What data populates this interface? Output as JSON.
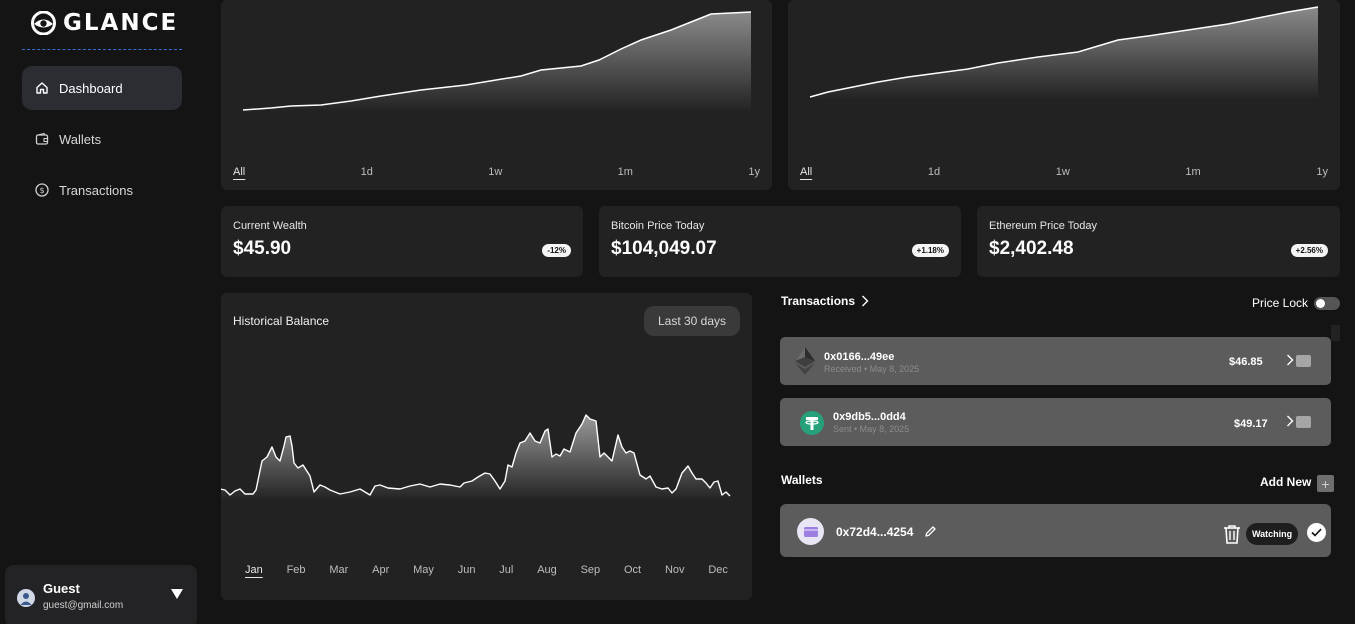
{
  "app": {
    "name": "GLANCE"
  },
  "sidebar": {
    "items": [
      {
        "label": "Dashboard",
        "icon": "home-icon",
        "active": true
      },
      {
        "label": "Wallets",
        "icon": "wallet-icon",
        "active": false
      },
      {
        "label": "Transactions",
        "icon": "dollar-circle-icon",
        "active": false
      }
    ]
  },
  "user": {
    "name": "Guest",
    "email": "guest@gmail.com"
  },
  "price_charts": {
    "range_tabs": [
      "All",
      "1d",
      "1w",
      "1m",
      "1y"
    ],
    "selected_range": "All"
  },
  "stats": [
    {
      "label": "Current Wealth",
      "value": "$45.90",
      "change": "-12%"
    },
    {
      "label": "Bitcoin Price Today",
      "value": "$104,049.07",
      "change": "+1.18%"
    },
    {
      "label": "Ethereum Price Today",
      "value": "$2,402.48",
      "change": "+2.56%"
    }
  ],
  "historical_balance": {
    "title": "Historical Balance",
    "range_button": "Last 30 days",
    "months": [
      "Jan",
      "Feb",
      "Mar",
      "Apr",
      "May",
      "Jun",
      "Jul",
      "Aug",
      "Sep",
      "Oct",
      "Nov",
      "Dec"
    ],
    "selected_month": "Jan"
  },
  "transactions": {
    "title": "Transactions",
    "price_lock_label": "Price Lock",
    "price_lock_on": false,
    "items": [
      {
        "address": "0x0166...49ee",
        "meta": "Received • May 8, 2025",
        "amount": "$46.85",
        "coin_icon": "ethereum-icon"
      },
      {
        "address": "0x9db5...0dd4",
        "meta": "Sent • May 8, 2025",
        "amount": "$49.17",
        "coin_icon": "tether-icon"
      }
    ]
  },
  "wallets": {
    "title": "Wallets",
    "add_label": "Add New",
    "items": [
      {
        "address": "0x72d4...4254",
        "status": "Watching"
      }
    ]
  },
  "colors": {
    "background": "#141414",
    "panel": "#222222",
    "card": "#5c5c5c",
    "accent_line": "#3a6fd1",
    "tether": "#26a17b"
  }
}
